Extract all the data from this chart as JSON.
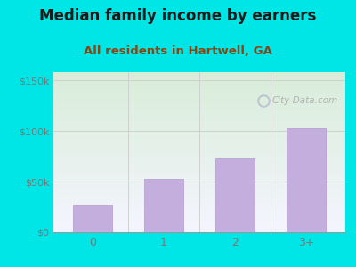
{
  "title": "Median family income by earners",
  "subtitle": "All residents in Hartwell, GA",
  "categories": [
    "0",
    "1",
    "2",
    "3+"
  ],
  "values": [
    27000,
    53000,
    73000,
    103000
  ],
  "bar_color": "#c4aede",
  "bar_edge_color": "#b09acc",
  "title_color": "#1a1a1a",
  "subtitle_color": "#8b4513",
  "ytick_labels": [
    "$0",
    "$50k",
    "$100k",
    "$150k"
  ],
  "ytick_values": [
    0,
    50000,
    100000,
    150000
  ],
  "ylim": [
    0,
    158000
  ],
  "outer_bg": "#00e5e5",
  "plot_bg_topleft": "#d8edd8",
  "plot_bg_bottomright": "#f5f5ff",
  "watermark": "City-Data.com",
  "watermark_color": "#aaaaaa",
  "grid_color": "#cccccc",
  "title_fontsize": 12,
  "subtitle_fontsize": 9.5,
  "tick_color": "#777777"
}
